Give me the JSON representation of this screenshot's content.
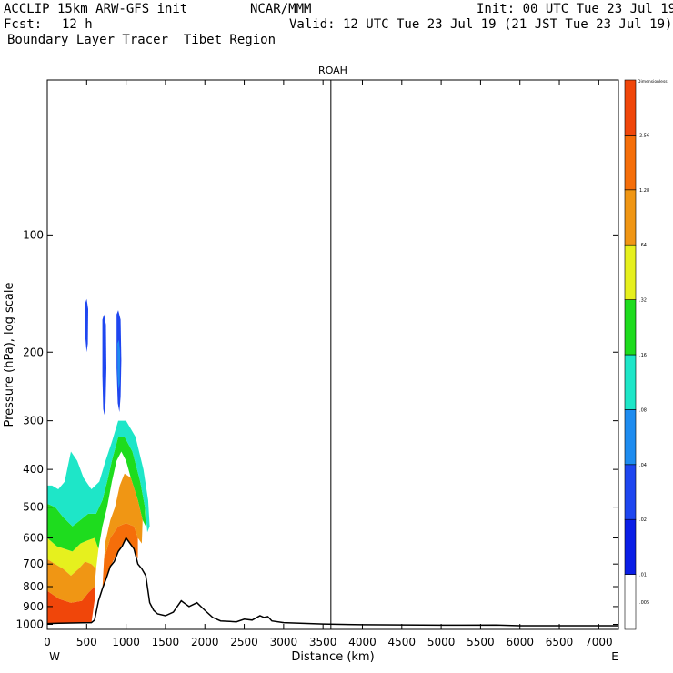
{
  "header": {
    "title_line": "ACCLIP 15km ARW-GFS init",
    "org": "NCAR/MMM",
    "init": "Init: 00 UTC Tue 23 Jul 19",
    "fcst_label": "Fcst:",
    "fcst_value": "12 h",
    "valid": "Valid: 12 UTC Tue 23 Jul 19 (21 JST Tue 23 Jul 19)",
    "field": "Boundary Layer Tracer  Tibet Region"
  },
  "chart_data": {
    "type": "heatmap",
    "title": "ROAH",
    "xlabel": "Distance (km)",
    "ylabel": "Pressure (hPa), log scale",
    "x_tick_labels": [
      "0",
      "500",
      "1000",
      "1500",
      "2000",
      "2500",
      "3000",
      "3500",
      "4000",
      "4500",
      "5000",
      "5500",
      "6000",
      "6500",
      "7000"
    ],
    "x_ticks": [
      0,
      500,
      1000,
      1500,
      2000,
      2500,
      3000,
      3500,
      4000,
      4500,
      5000,
      5500,
      6000,
      6500,
      7000
    ],
    "xlim": [
      0,
      7250
    ],
    "y_tick_labels": [
      "100",
      "200",
      "300",
      "400",
      "500",
      "600",
      "700",
      "800",
      "900",
      "1000"
    ],
    "y_ticks": [
      100,
      200,
      300,
      400,
      500,
      600,
      700,
      800,
      900,
      1000
    ],
    "ylim": [
      1030,
      40
    ],
    "y_scale": "log",
    "x_end_labels": {
      "left": "W",
      "right": "E"
    },
    "marker_line_x": 3600,
    "colorbar": {
      "units_label": "Dimensionless",
      "levels": [
        ".005",
        ".01",
        ".02",
        ".04",
        ".08",
        ".16",
        ".32",
        ".64",
        "1.28",
        "2.56"
      ],
      "colors": [
        "#ffffff",
        "#0a1ee6",
        "#1e46f0",
        "#1e8cf0",
        "#1ee6c8",
        "#1edc1e",
        "#e6f01e",
        "#f09614",
        "#f56e0a",
        "#f0460a"
      ]
    },
    "terrain": [
      [
        0,
        995
      ],
      [
        150,
        993
      ],
      [
        300,
        992
      ],
      [
        450,
        991
      ],
      [
        560,
        990
      ],
      [
        600,
        975
      ],
      [
        650,
        870
      ],
      [
        700,
        810
      ],
      [
        750,
        760
      ],
      [
        800,
        710
      ],
      [
        850,
        690
      ],
      [
        900,
        650
      ],
      [
        950,
        630
      ],
      [
        1000,
        600
      ],
      [
        1050,
        620
      ],
      [
        1100,
        640
      ],
      [
        1150,
        700
      ],
      [
        1200,
        720
      ],
      [
        1250,
        750
      ],
      [
        1300,
        880
      ],
      [
        1350,
        920
      ],
      [
        1400,
        940
      ],
      [
        1500,
        950
      ],
      [
        1600,
        930
      ],
      [
        1700,
        870
      ],
      [
        1750,
        885
      ],
      [
        1800,
        900
      ],
      [
        1900,
        880
      ],
      [
        1950,
        900
      ],
      [
        2000,
        920
      ],
      [
        2100,
        960
      ],
      [
        2200,
        980
      ],
      [
        2400,
        985
      ],
      [
        2500,
        970
      ],
      [
        2600,
        975
      ],
      [
        2700,
        950
      ],
      [
        2750,
        960
      ],
      [
        2800,
        955
      ],
      [
        2850,
        980
      ],
      [
        3000,
        990
      ],
      [
        3500,
        998
      ],
      [
        4000,
        1002
      ],
      [
        5000,
        1005
      ],
      [
        5700,
        1004
      ],
      [
        6000,
        1008
      ],
      [
        7250,
        1008
      ]
    ],
    "tracer_regions": [
      {
        "level": 9,
        "points": [
          [
            0,
            1000
          ],
          [
            560,
            990
          ],
          [
            600,
            870
          ],
          [
            600,
            800
          ],
          [
            520,
            830
          ],
          [
            440,
            870
          ],
          [
            300,
            880
          ],
          [
            150,
            860
          ],
          [
            0,
            820
          ]
        ]
      },
      {
        "level": 8,
        "points": [
          [
            700,
            810
          ],
          [
            800,
            710
          ],
          [
            900,
            650
          ],
          [
            1000,
            600
          ],
          [
            1100,
            640
          ],
          [
            1150,
            680
          ],
          [
            1150,
            600
          ],
          [
            1100,
            560
          ],
          [
            1000,
            550
          ],
          [
            900,
            560
          ],
          [
            800,
            600
          ],
          [
            720,
            680
          ]
        ]
      },
      {
        "level": 7,
        "points": [
          [
            0,
            820
          ],
          [
            150,
            860
          ],
          [
            300,
            880
          ],
          [
            440,
            870
          ],
          [
            520,
            830
          ],
          [
            600,
            800
          ],
          [
            620,
            720
          ],
          [
            560,
            700
          ],
          [
            480,
            690
          ],
          [
            400,
            720
          ],
          [
            300,
            750
          ],
          [
            200,
            720
          ],
          [
            100,
            700
          ],
          [
            0,
            680
          ]
        ]
      },
      {
        "level": 7,
        "points": [
          [
            720,
            680
          ],
          [
            800,
            600
          ],
          [
            900,
            560
          ],
          [
            1000,
            550
          ],
          [
            1100,
            560
          ],
          [
            1150,
            600
          ],
          [
            1200,
            620
          ],
          [
            1210,
            540
          ],
          [
            1150,
            480
          ],
          [
            1060,
            420
          ],
          [
            980,
            410
          ],
          [
            920,
            440
          ],
          [
            860,
            500
          ],
          [
            800,
            540
          ],
          [
            740,
            610
          ]
        ]
      }
    ],
    "tracer_bands": [
      {
        "level": 6,
        "points": [
          [
            0,
            680
          ],
          [
            100,
            700
          ],
          [
            200,
            720
          ],
          [
            300,
            750
          ],
          [
            400,
            720
          ],
          [
            480,
            690
          ],
          [
            560,
            700
          ],
          [
            620,
            720
          ],
          [
            650,
            640
          ],
          [
            600,
            600
          ],
          [
            500,
            610
          ],
          [
            420,
            620
          ],
          [
            320,
            650
          ],
          [
            220,
            640
          ],
          [
            120,
            630
          ],
          [
            0,
            600
          ]
        ]
      },
      {
        "level": 5,
        "points": [
          [
            0,
            600
          ],
          [
            120,
            630
          ],
          [
            220,
            640
          ],
          [
            320,
            650
          ],
          [
            420,
            620
          ],
          [
            500,
            610
          ],
          [
            600,
            600
          ],
          [
            650,
            640
          ],
          [
            700,
            560
          ],
          [
            760,
            500
          ],
          [
            820,
            430
          ],
          [
            880,
            380
          ],
          [
            940,
            360
          ],
          [
            1000,
            380
          ],
          [
            1060,
            420
          ],
          [
            1150,
            480
          ],
          [
            1210,
            540
          ],
          [
            1250,
            560
          ],
          [
            1240,
            500
          ],
          [
            1180,
            430
          ],
          [
            1080,
            360
          ],
          [
            980,
            330
          ],
          [
            900,
            330
          ],
          [
            820,
            380
          ],
          [
            760,
            430
          ],
          [
            700,
            480
          ],
          [
            620,
            520
          ],
          [
            520,
            520
          ],
          [
            420,
            540
          ],
          [
            320,
            560
          ],
          [
            200,
            530
          ],
          [
            100,
            500
          ],
          [
            0,
            490
          ]
        ]
      },
      {
        "level": 4,
        "points": [
          [
            0,
            490
          ],
          [
            100,
            500
          ],
          [
            200,
            530
          ],
          [
            320,
            560
          ],
          [
            420,
            540
          ],
          [
            520,
            520
          ],
          [
            620,
            520
          ],
          [
            700,
            480
          ],
          [
            760,
            430
          ],
          [
            820,
            380
          ],
          [
            900,
            330
          ],
          [
            980,
            330
          ],
          [
            1080,
            360
          ],
          [
            1180,
            430
          ],
          [
            1240,
            500
          ],
          [
            1270,
            580
          ],
          [
            1300,
            560
          ],
          [
            1280,
            480
          ],
          [
            1220,
            400
          ],
          [
            1120,
            330
          ],
          [
            1000,
            300
          ],
          [
            900,
            300
          ],
          [
            820,
            340
          ],
          [
            740,
            380
          ],
          [
            660,
            430
          ],
          [
            560,
            450
          ],
          [
            460,
            420
          ],
          [
            380,
            380
          ],
          [
            300,
            360
          ],
          [
            220,
            430
          ],
          [
            140,
            450
          ],
          [
            60,
            440
          ],
          [
            0,
            440
          ]
        ]
      }
    ],
    "upper_plumes": [
      {
        "level": 2,
        "points": [
          [
            480,
            150
          ],
          [
            500,
            146
          ],
          [
            520,
            155
          ],
          [
            515,
            190
          ],
          [
            500,
            200
          ],
          [
            485,
            185
          ]
        ]
      },
      {
        "level": 2,
        "points": [
          [
            700,
            165
          ],
          [
            720,
            160
          ],
          [
            745,
            170
          ],
          [
            750,
            220
          ],
          [
            740,
            270
          ],
          [
            725,
            290
          ],
          [
            710,
            280
          ],
          [
            700,
            230
          ]
        ]
      },
      {
        "level": 2,
        "points": [
          [
            880,
            160
          ],
          [
            900,
            156
          ],
          [
            930,
            165
          ],
          [
            940,
            210
          ],
          [
            930,
            260
          ],
          [
            915,
            285
          ],
          [
            895,
            270
          ],
          [
            880,
            220
          ]
        ]
      },
      {
        "level": 3,
        "points": [
          [
            890,
            190
          ],
          [
            910,
            186
          ],
          [
            925,
            200
          ],
          [
            920,
            240
          ],
          [
            905,
            250
          ],
          [
            892,
            230
          ]
        ]
      }
    ]
  }
}
